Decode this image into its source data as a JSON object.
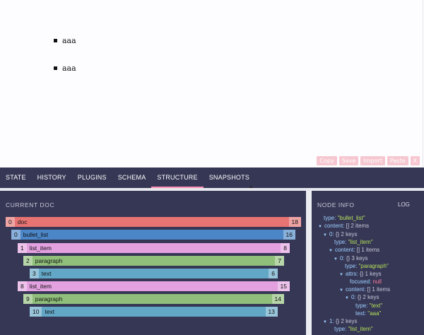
{
  "editor": {
    "items": [
      "aaa",
      "aaa"
    ],
    "toolbar": [
      "Copy",
      "Save",
      "Import",
      "Paste",
      "X"
    ]
  },
  "devtools": {
    "tabs": [
      "STATE",
      "HISTORY",
      "PLUGINS",
      "SCHEMA",
      "STRUCTURE",
      "SNAPSHOTS"
    ],
    "active_tab": "STRUCTURE",
    "current_doc_title": "CURRENT DOC",
    "node_info_title": "NODE INFO",
    "log_label": "LOG"
  },
  "structure": [
    {
      "start": "0",
      "label": "doc",
      "end": "18",
      "color": "#e77373"
    },
    {
      "start": "0",
      "label": "bullet_list",
      "end": "16",
      "color": "#4b86c8"
    },
    {
      "start": "1",
      "label": "list_item",
      "end": "8",
      "color": "#e3a1e0"
    },
    {
      "start": "2",
      "label": "paragraph",
      "end": "7",
      "color": "#8fbf7a"
    },
    {
      "start": "3",
      "label": "text",
      "end": "6",
      "color": "#63a7c7"
    },
    {
      "start": "8",
      "label": "list_item",
      "end": "15",
      "color": "#e3a1e0"
    },
    {
      "start": "9",
      "label": "paragraph",
      "end": "14",
      "color": "#8fbf7a"
    },
    {
      "start": "10",
      "label": "text",
      "end": "13",
      "color": "#63a7c7"
    }
  ],
  "node_info": {
    "l0_key": "type:",
    "l0_val": "\"bullet_list\"",
    "l1_key": "content:",
    "l1_meta": "[] 2 items",
    "l2_key": "0:",
    "l2_meta": "{} 2 keys",
    "l3_key": "type:",
    "l3_val": "\"list_item\"",
    "l4_key": "content:",
    "l4_meta": "[] 1 items",
    "l5_key": "0:",
    "l5_meta": "{} 3 keys",
    "l6_key": "type:",
    "l6_val": "\"paragraph\"",
    "l7_key": "attrs:",
    "l7_meta": "{} 1 keys",
    "l8_key": "focused:",
    "l8_val": "null",
    "l9_key": "content:",
    "l9_meta": "[] 1 items",
    "l10_key": "0:",
    "l10_meta": "{} 2 keys",
    "l11_key": "type:",
    "l11_val": "\"text\"",
    "l12_key": "text:",
    "l12_val": "\"aaa\"",
    "l13_key": "1:",
    "l13_meta": "{} 2 keys",
    "l14_key": "type:",
    "l14_val": "\"list_item\""
  }
}
